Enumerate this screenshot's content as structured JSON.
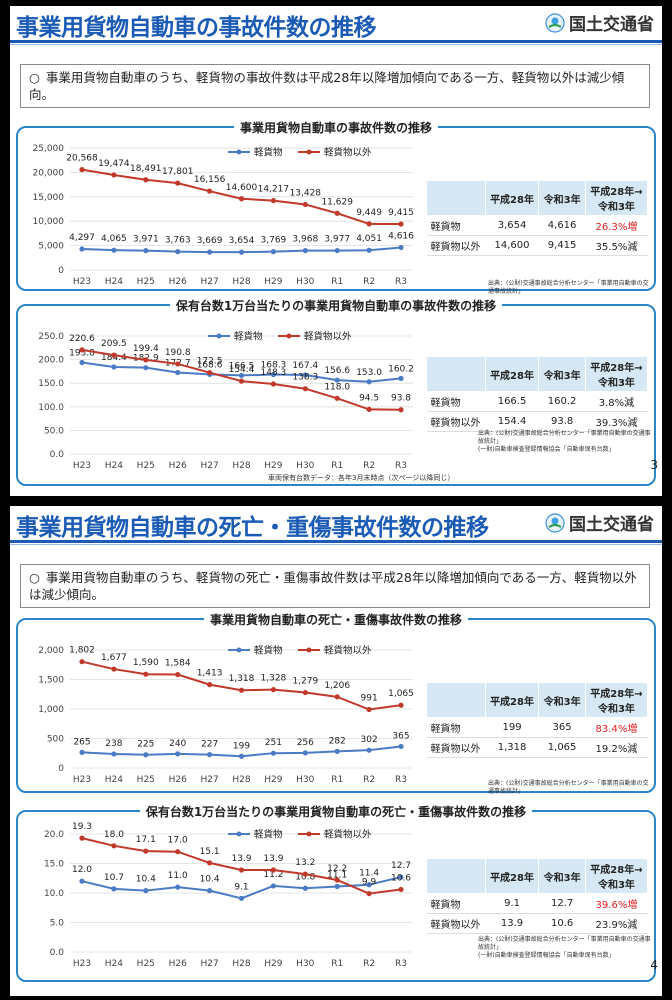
{
  "slides": [
    {
      "title": "事業用貨物自動車の事故件数の推移",
      "logo": "国土交通省",
      "summary_bullet": "○",
      "summary": "事業用貨物自動車のうち、軽貨物の事故件数は平成28年以降増加傾向である一方、軽貨物以外は減少傾向。",
      "page": "3",
      "panels": [
        {
          "title": "事業用貨物自動車の事故件数の推移",
          "legend": [
            "軽貨物",
            "軽貨物以外"
          ],
          "table": {
            "headers": [
              "",
              "平成28年",
              "令和3年",
              "平成28年→\n令和3年"
            ],
            "rows": [
              [
                "軽貨物",
                "3,654",
                "4,616",
                "26.3%増"
              ],
              [
                "軽貨物以外",
                "14,600",
                "9,415",
                "35.5%減"
              ]
            ]
          },
          "source": "出典：(公財)交通事故総合分析センター「事業用自動車の交通事故統計」"
        },
        {
          "title": "保有台数1万台当たりの事業用貨物自動車の事故件数の推移",
          "legend": [
            "軽貨物",
            "軽貨物以外"
          ],
          "table": {
            "headers": [
              "",
              "平成28年",
              "令和3年",
              "平成28年→\n令和3年"
            ],
            "rows": [
              [
                "軽貨物",
                "166.5",
                "160.2",
                "3.8%減"
              ],
              [
                "軽貨物以外",
                "154.4",
                "93.8",
                "39.3%減"
              ]
            ]
          },
          "source": "出典：(公財)交通事故総合分析センター「事業用自動車の交通事故統計」\n(一財)自動車検査登録情報協会「自動車保有台数」",
          "footnote": "車両保有台数データ：各年3月末時点（次ページ以降同じ）"
        }
      ]
    },
    {
      "title": "事業用貨物自動車の死亡・重傷事故件数の推移",
      "logo": "国土交通省",
      "summary_bullet": "○",
      "summary": "事業用貨物自動車のうち、軽貨物の死亡・重傷事故件数は平成28年以降増加傾向である一方、軽貨物以外は減少傾向。",
      "page": "4",
      "panels": [
        {
          "title": "事業用貨物自動車の死亡・重傷事故件数の推移",
          "legend": [
            "軽貨物",
            "軽貨物以外"
          ],
          "table": {
            "headers": [
              "",
              "平成28年",
              "令和3年",
              "平成28年→\n令和3年"
            ],
            "rows": [
              [
                "軽貨物",
                "199",
                "365",
                "83.4%増"
              ],
              [
                "軽貨物以外",
                "1,318",
                "1,065",
                "19.2%減"
              ]
            ]
          },
          "source": "出典：(公財)交通事故総合分析センター「事業用自動車の交通事故統計」"
        },
        {
          "title": "保有台数1万台当たりの事業用貨物自動車の死亡・重傷事故件数の推移",
          "legend": [
            "軽貨物",
            "軽貨物以外"
          ],
          "table": {
            "headers": [
              "",
              "平成28年",
              "令和3年",
              "平成28年→\n令和3年"
            ],
            "rows": [
              [
                "軽貨物",
                "9.1",
                "12.7",
                "39.6%増"
              ],
              [
                "軽貨物以外",
                "13.9",
                "10.6",
                "23.9%減"
              ]
            ]
          },
          "source": "出典：(公財)交通事故総合分析センター「事業用自動車の交通事故統計」\n(一財)自動車検査登録情報協会「自動車保有台数」"
        }
      ]
    }
  ],
  "colors": {
    "blue": "#4a7bc4",
    "red": "#c0392b",
    "border": "#2b86c9",
    "title": "#1b5bb5"
  },
  "chart_data": [
    {
      "type": "line",
      "title": "事業用貨物自動車の事故件数の推移",
      "categories": [
        "H23",
        "H24",
        "H25",
        "H26",
        "H27",
        "H28",
        "H29",
        "H30",
        "R1",
        "R2",
        "R3"
      ],
      "ylim": [
        0,
        25000
      ],
      "yticks": [
        "0",
        "5,000",
        "10,000",
        "15,000",
        "20,000",
        "25,000"
      ],
      "series": [
        {
          "name": "軽貨物",
          "color": "#4a7bc4",
          "values": [
            4297,
            4065,
            3971,
            3763,
            3669,
            3654,
            3769,
            3968,
            3977,
            4051,
            4616
          ],
          "labels": [
            "4,297",
            "4,065",
            "3,971",
            "3,763",
            "3,669",
            "3,654",
            "3,769",
            "3,968",
            "3,977",
            "4,051",
            "4,616"
          ]
        },
        {
          "name": "軽貨物以外",
          "color": "#c0392b",
          "values": [
            20568,
            19474,
            18491,
            17801,
            16156,
            14600,
            14217,
            13428,
            11629,
            9449,
            9415
          ],
          "labels": [
            "20,568",
            "19,474",
            "18,491",
            "17,801",
            "16,156",
            "14,600",
            "14,217",
            "13,428",
            "11,629",
            "9,449",
            "9,415"
          ]
        }
      ]
    },
    {
      "type": "line",
      "title": "保有台数1万台当たりの事業用貨物自動車の事故件数の推移",
      "categories": [
        "H23",
        "H24",
        "H25",
        "H26",
        "H27",
        "H28",
        "H29",
        "H30",
        "R1",
        "R2",
        "R3"
      ],
      "ylim": [
        0,
        250
      ],
      "yticks": [
        "0.0",
        "50.0",
        "100.0",
        "150.0",
        "200.0",
        "250.0"
      ],
      "series": [
        {
          "name": "軽貨物",
          "color": "#4a7bc4",
          "values": [
            193.8,
            184.4,
            182.9,
            172.7,
            168.6,
            166.5,
            168.3,
            167.4,
            156.6,
            153.0,
            160.2
          ],
          "labels": [
            "193.8",
            "184.4",
            "182.9",
            "172.7",
            "168.6",
            "166.5",
            "168.3",
            "167.4",
            "156.6",
            "153.0",
            "160.2"
          ]
        },
        {
          "name": "軽貨物以外",
          "color": "#c0392b",
          "values": [
            220.6,
            209.5,
            199.4,
            190.8,
            172.5,
            154.4,
            148.3,
            138.3,
            118.0,
            94.5,
            93.8
          ],
          "labels": [
            "220.6",
            "209.5",
            "199.4",
            "190.8",
            "172.5",
            "154.4",
            "148.3",
            "138.3",
            "118.0",
            "94.5",
            "93.8"
          ]
        }
      ]
    },
    {
      "type": "line",
      "title": "事業用貨物自動車の死亡・重傷事故件数の推移",
      "categories": [
        "H23",
        "H24",
        "H25",
        "H26",
        "H27",
        "H28",
        "H29",
        "H30",
        "R1",
        "R2",
        "R3"
      ],
      "ylim": [
        0,
        2000
      ],
      "yticks": [
        "0",
        "500",
        "1,000",
        "1,500",
        "2,000"
      ],
      "series": [
        {
          "name": "軽貨物",
          "color": "#4a7bc4",
          "values": [
            265,
            238,
            225,
            240,
            227,
            199,
            251,
            256,
            282,
            302,
            365
          ],
          "labels": [
            "265",
            "238",
            "225",
            "240",
            "227",
            "199",
            "251",
            "256",
            "282",
            "302",
            "365"
          ]
        },
        {
          "name": "軽貨物以外",
          "color": "#c0392b",
          "values": [
            1802,
            1677,
            1590,
            1584,
            1413,
            1318,
            1328,
            1279,
            1206,
            991,
            1065
          ],
          "labels": [
            "1,802",
            "1,677",
            "1,590",
            "1,584",
            "1,413",
            "1,318",
            "1,328",
            "1,279",
            "1,206",
            "991",
            "1,065"
          ]
        }
      ]
    },
    {
      "type": "line",
      "title": "保有台数1万台当たりの事業用貨物自動車の死亡・重傷事故件数の推移",
      "categories": [
        "H23",
        "H24",
        "H25",
        "H26",
        "H27",
        "H28",
        "H29",
        "H30",
        "R1",
        "R2",
        "R3"
      ],
      "ylim": [
        0,
        20
      ],
      "yticks": [
        "0.0",
        "5.0",
        "10.0",
        "15.0",
        "20.0"
      ],
      "series": [
        {
          "name": "軽貨物",
          "color": "#4a7bc4",
          "values": [
            12.0,
            10.7,
            10.4,
            11.0,
            10.4,
            9.1,
            11.2,
            10.8,
            11.1,
            11.4,
            12.7
          ],
          "labels": [
            "12.0",
            "10.7",
            "10.4",
            "11.0",
            "10.4",
            "9.1",
            "11.2",
            "10.8",
            "11.1",
            "11.4",
            "12.7"
          ]
        },
        {
          "name": "軽貨物以外",
          "color": "#c0392b",
          "values": [
            19.3,
            18.0,
            17.1,
            17.0,
            15.1,
            13.9,
            13.9,
            13.2,
            12.2,
            9.9,
            10.6
          ],
          "labels": [
            "19.3",
            "18.0",
            "17.1",
            "17.0",
            "15.1",
            "13.9",
            "13.9",
            "13.2",
            "12.2",
            "9.9",
            "10.6"
          ]
        }
      ]
    }
  ]
}
